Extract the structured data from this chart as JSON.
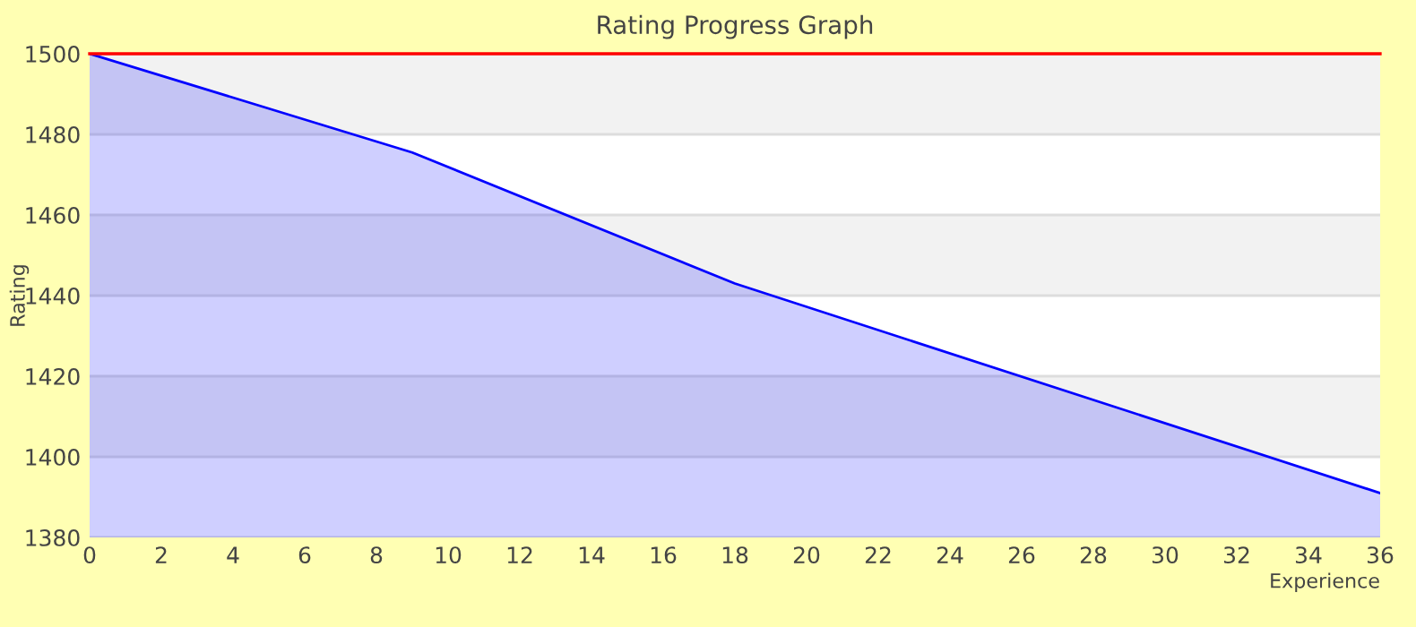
{
  "chart_data": {
    "type": "area",
    "title": "Rating Progress Graph",
    "xlabel": "Experience",
    "ylabel": "Rating",
    "x": [
      0,
      9,
      18,
      36
    ],
    "series": [
      {
        "color": "#0000ff",
        "values": [
          1500,
          1475.5,
          1443,
          1391
        ]
      }
    ],
    "xlim": [
      0,
      36
    ],
    "xticks": [
      0,
      2,
      4,
      6,
      8,
      10,
      12,
      14,
      16,
      18,
      20,
      22,
      24,
      26,
      28,
      30,
      32,
      34,
      36
    ],
    "ylim": [
      1380,
      1500
    ],
    "yticks": [
      1380,
      1400,
      1420,
      1440,
      1460,
      1480,
      1500
    ],
    "ref_lines": [
      {
        "axis": "y",
        "value": 1500,
        "color": "#ff0000"
      }
    ],
    "grid": "y"
  }
}
